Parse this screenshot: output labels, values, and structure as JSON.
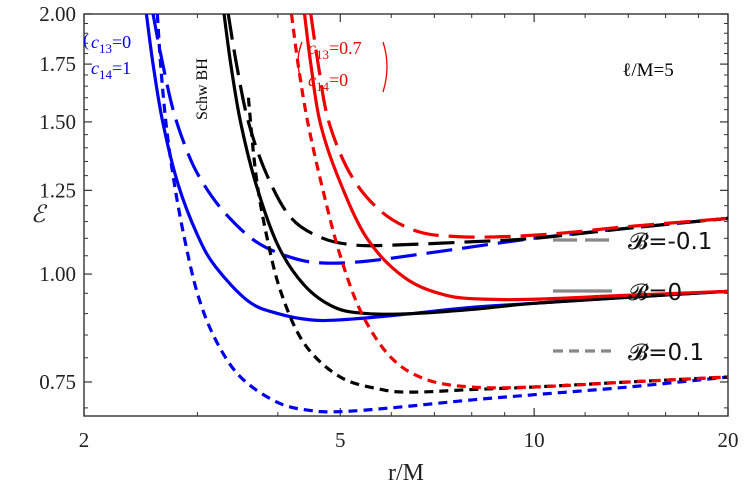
{
  "chart_data": {
    "type": "line",
    "title": "",
    "xlabel": "r/M",
    "ylabel": "ℰ",
    "x_scale": "log",
    "y_scale": "log",
    "xlim": [
      2,
      20
    ],
    "ylim": [
      0.685,
      2.0
    ],
    "x_ticks": [
      2,
      5,
      10,
      20
    ],
    "x_tick_labels": [
      "2",
      "5",
      "10",
      "20"
    ],
    "y_ticks": [
      0.75,
      1.0,
      1.25,
      1.5,
      1.75,
      2.0
    ],
    "y_tick_labels": [
      "0.75",
      "1.00",
      "1.25",
      "1.50",
      "1.75",
      "2.00"
    ],
    "grid": false,
    "legend": {
      "placement": "right",
      "entries": [
        {
          "label": "𝓑=-0.1",
          "dash": "long-dash",
          "color": "#888888"
        },
        {
          "label": "𝓑=0",
          "dash": "solid",
          "color": "#888888"
        },
        {
          "label": "𝓑=0.1",
          "dash": "short-dash",
          "color": "#888888"
        }
      ]
    },
    "annotations": [
      {
        "text": "ℓ/M=5",
        "color": "#000000"
      },
      {
        "text": "Schw BH",
        "color": "#000000"
      },
      {
        "line1_base": "c",
        "line1_sub": "13",
        "line1_val": "=0",
        "line2_base": "c",
        "line2_sub": "14",
        "line2_val": "=1",
        "color": "#0000ee"
      },
      {
        "line1_base": "c",
        "line1_sub": "13",
        "line1_val": "=0.7",
        "line2_base": "c",
        "line2_sub": "14",
        "line2_val": "=0",
        "color": "#ee0000"
      }
    ],
    "series": [
      {
        "group": "blue",
        "color": "#0000ee",
        "B": -0.1,
        "dash": "long",
        "points": [
          [
            2.56,
            2.0
          ],
          [
            2.63,
            1.8
          ],
          [
            2.75,
            1.55
          ],
          [
            2.9,
            1.38
          ],
          [
            3.05,
            1.28
          ],
          [
            3.3,
            1.18
          ],
          [
            3.7,
            1.09
          ],
          [
            4.2,
            1.045
          ],
          [
            4.7,
            1.03
          ],
          [
            5.5,
            1.035
          ],
          [
            7,
            1.06
          ],
          [
            10,
            1.1
          ],
          [
            14,
            1.13
          ],
          [
            20,
            1.16
          ]
        ]
      },
      {
        "group": "blue",
        "color": "#0000ee",
        "B": 0,
        "dash": "solid",
        "points": [
          [
            2.5,
            2.0
          ],
          [
            2.56,
            1.75
          ],
          [
            2.65,
            1.5
          ],
          [
            2.8,
            1.27
          ],
          [
            3.0,
            1.11
          ],
          [
            3.2,
            1.02
          ],
          [
            3.6,
            0.93
          ],
          [
            4.0,
            0.9
          ],
          [
            4.5,
            0.885
          ],
          [
            5.0,
            0.885
          ],
          [
            6.0,
            0.895
          ],
          [
            8.0,
            0.915
          ],
          [
            10,
            0.925
          ],
          [
            14,
            0.94
          ],
          [
            20,
            0.955
          ]
        ]
      },
      {
        "group": "blue",
        "color": "#0000ee",
        "B": 0.1,
        "dash": "short",
        "points": [
          [
            2.6,
            2.0
          ],
          [
            2.63,
            1.75
          ],
          [
            2.68,
            1.5
          ],
          [
            2.75,
            1.3
          ],
          [
            2.85,
            1.12
          ],
          [
            3.0,
            0.95
          ],
          [
            3.2,
            0.84
          ],
          [
            3.5,
            0.76
          ],
          [
            4.0,
            0.71
          ],
          [
            4.5,
            0.695
          ],
          [
            5.0,
            0.693
          ],
          [
            6.0,
            0.7
          ],
          [
            8.0,
            0.715
          ],
          [
            10,
            0.725
          ],
          [
            14,
            0.74
          ],
          [
            20,
            0.76
          ]
        ]
      },
      {
        "group": "black",
        "color": "#000000",
        "B": -0.1,
        "dash": "long",
        "points": [
          [
            3.35,
            2.0
          ],
          [
            3.45,
            1.75
          ],
          [
            3.6,
            1.5
          ],
          [
            3.85,
            1.3
          ],
          [
            4.2,
            1.16
          ],
          [
            4.7,
            1.1
          ],
          [
            5.3,
            1.08
          ],
          [
            6.0,
            1.08
          ],
          [
            8.0,
            1.09
          ],
          [
            10,
            1.1
          ],
          [
            14,
            1.13
          ],
          [
            20,
            1.16
          ]
        ]
      },
      {
        "group": "black",
        "color": "#000000",
        "B": 0,
        "dash": "solid",
        "points": [
          [
            3.3,
            2.0
          ],
          [
            3.38,
            1.75
          ],
          [
            3.5,
            1.5
          ],
          [
            3.7,
            1.27
          ],
          [
            4.0,
            1.08
          ],
          [
            4.4,
            0.97
          ],
          [
            4.9,
            0.915
          ],
          [
            5.5,
            0.9
          ],
          [
            6.5,
            0.9
          ],
          [
            8.0,
            0.91
          ],
          [
            10,
            0.925
          ],
          [
            14,
            0.94
          ],
          [
            20,
            0.955
          ]
        ]
      },
      {
        "group": "black",
        "color": "#000000",
        "B": 0.1,
        "dash": "short",
        "points": [
          [
            3.6,
            1.6
          ],
          [
            3.7,
            1.3
          ],
          [
            3.85,
            1.1
          ],
          [
            4.05,
            0.95
          ],
          [
            4.4,
            0.83
          ],
          [
            5.0,
            0.76
          ],
          [
            5.8,
            0.735
          ],
          [
            6.5,
            0.73
          ],
          [
            8.0,
            0.735
          ],
          [
            10,
            0.74
          ],
          [
            14,
            0.75
          ],
          [
            20,
            0.76
          ]
        ]
      },
      {
        "group": "red",
        "color": "#ee0000",
        "B": -0.1,
        "dash": "long",
        "points": [
          [
            4.5,
            2.0
          ],
          [
            4.62,
            1.75
          ],
          [
            4.8,
            1.5
          ],
          [
            5.2,
            1.3
          ],
          [
            5.8,
            1.18
          ],
          [
            6.6,
            1.12
          ],
          [
            7.6,
            1.105
          ],
          [
            9.0,
            1.105
          ],
          [
            11,
            1.115
          ],
          [
            14,
            1.135
          ],
          [
            20,
            1.16
          ]
        ]
      },
      {
        "group": "red",
        "color": "#ee0000",
        "B": 0,
        "dash": "solid",
        "points": [
          [
            4.4,
            2.0
          ],
          [
            4.5,
            1.75
          ],
          [
            4.65,
            1.5
          ],
          [
            4.95,
            1.3
          ],
          [
            5.5,
            1.1
          ],
          [
            6.3,
            0.99
          ],
          [
            7.3,
            0.945
          ],
          [
            8.5,
            0.935
          ],
          [
            10,
            0.935
          ],
          [
            14,
            0.945
          ],
          [
            20,
            0.955
          ]
        ]
      },
      {
        "group": "red",
        "color": "#ee0000",
        "B": 0.1,
        "dash": "short",
        "points": [
          [
            4.2,
            2.0
          ],
          [
            4.3,
            1.75
          ],
          [
            4.45,
            1.5
          ],
          [
            4.7,
            1.25
          ],
          [
            5.0,
            1.05
          ],
          [
            5.4,
            0.9
          ],
          [
            6.0,
            0.8
          ],
          [
            6.8,
            0.755
          ],
          [
            8.0,
            0.74
          ],
          [
            10,
            0.74
          ],
          [
            14,
            0.75
          ],
          [
            20,
            0.76
          ]
        ]
      }
    ]
  }
}
